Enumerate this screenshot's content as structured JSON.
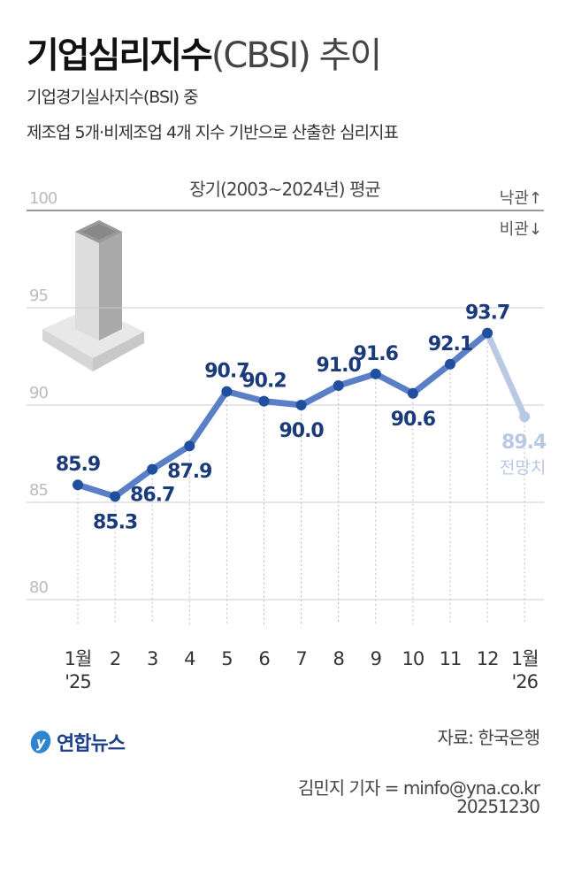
{
  "title_bold": "기업심리지수",
  "title_light": "(CBSI) 추이",
  "subtitle_lines": [
    "기업경기실사지수(BSI) 중",
    "제조업 5개·비제조업 4개 지수 기반으로 산출한 심리지표"
  ],
  "chart_data": {
    "type": "line",
    "categories": [
      "1월\n'25",
      "2",
      "3",
      "4",
      "5",
      "6",
      "7",
      "8",
      "9",
      "10",
      "11",
      "12",
      "1월\n'26"
    ],
    "values": [
      85.9,
      85.3,
      86.7,
      87.9,
      90.7,
      90.2,
      90.0,
      91.0,
      91.6,
      90.6,
      92.1,
      93.7,
      89.4
    ],
    "forecast_label": "전망치",
    "ylim": [
      80,
      100
    ],
    "yticks": [
      100,
      95,
      90,
      85,
      80
    ],
    "reference_line": {
      "value": 100,
      "label": "장기(2003~2024년) 평균",
      "above": "낙관↑",
      "below": "비관↓"
    },
    "grid": true,
    "colors": {
      "line": "#5b7fc6",
      "point": "#1f4f9e",
      "label": "#1a3a7a",
      "forecast": "#b9c9e3"
    }
  },
  "logo": "연합뉴스",
  "source": "자료: 한국은행",
  "credit": "김민지 기자 = minfo@yna.co.kr",
  "date": "20251230"
}
